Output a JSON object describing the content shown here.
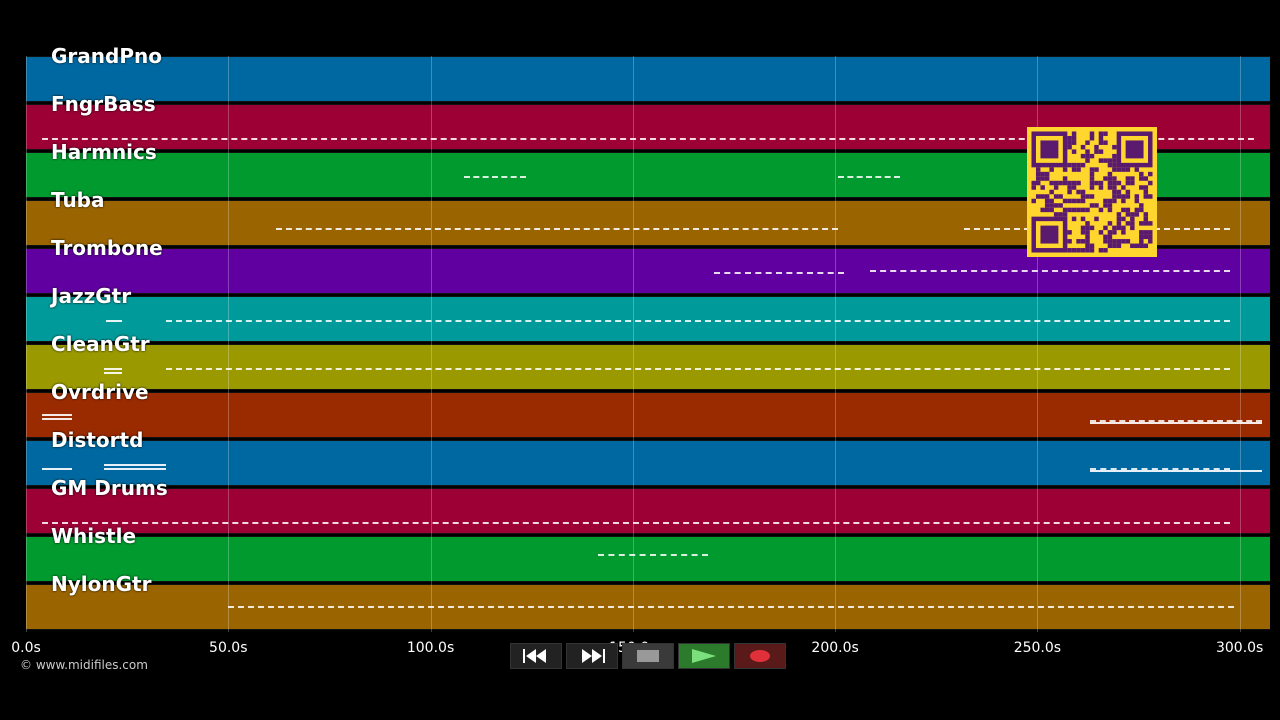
{
  "tracks": [
    {
      "name": "GrandPno",
      "color": "#0068a0"
    },
    {
      "name": "FngrBass",
      "color": "#9c0035"
    },
    {
      "name": "Harmnics",
      "color": "#009a2e"
    },
    {
      "name": "Tuba",
      "color": "#9a6400"
    },
    {
      "name": "Trombone",
      "color": "#6000a0"
    },
    {
      "name": "JazzGtr",
      "color": "#009a9a"
    },
    {
      "name": "CleanGtr",
      "color": "#9a9a00"
    },
    {
      "name": "Ovrdrive",
      "color": "#9a2a00"
    },
    {
      "name": "Distortd",
      "color": "#0068a0"
    },
    {
      "name": "GM Drums",
      "color": "#9c0035"
    },
    {
      "name": "Whistle",
      "color": "#009a2e"
    },
    {
      "name": "NylonGtr",
      "color": "#9a6400"
    }
  ],
  "axis": {
    "ticks": [
      "0.0s",
      "50.0s",
      "100.0s",
      "150.0s",
      "200.0s",
      "250.0s",
      "300.0s"
    ],
    "max_seconds": 307.5
  },
  "copyright": "© www.midifiles.com",
  "transport": {
    "rewind_icon": "rewind-icon",
    "forward_icon": "fast-forward-icon",
    "stop_icon": "stop-icon",
    "play_icon": "play-icon",
    "record_icon": "record-icon"
  },
  "qr_colors": {
    "fg": "#5a1a6e",
    "bg": "#ffd62e"
  }
}
